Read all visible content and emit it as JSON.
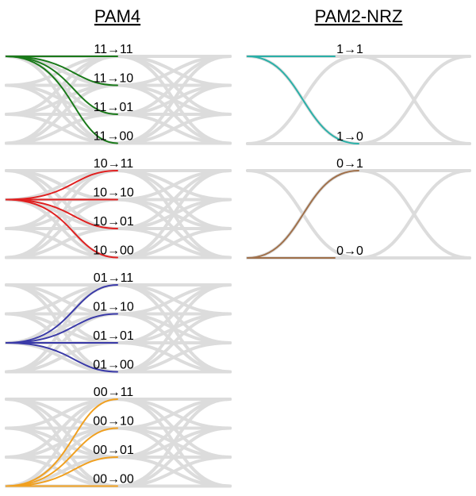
{
  "headings": {
    "pam4": "PAM4",
    "nrz": "PAM2-NRZ"
  },
  "colors": {
    "eye_gray": "#dcdcdc",
    "from_11": "#1a7a1a",
    "from_10": "#e02020",
    "from_01": "#3a3aa8",
    "from_00": "#f0a020",
    "nrz_1": "#2ab0a8",
    "nrz_0": "#a0704a"
  },
  "pam4": {
    "levels": [
      "11",
      "10",
      "01",
      "00"
    ],
    "groups": [
      {
        "from": "11",
        "color_key": "from_11",
        "labels": [
          "11→11",
          "11→10",
          "11→01",
          "11→00"
        ]
      },
      {
        "from": "10",
        "color_key": "from_10",
        "labels": [
          "10→11",
          "10→10",
          "10→01",
          "10→00"
        ]
      },
      {
        "from": "01",
        "color_key": "from_01",
        "labels": [
          "01→11",
          "01→10",
          "01→01",
          "01→00"
        ]
      },
      {
        "from": "00",
        "color_key": "from_00",
        "labels": [
          "00→11",
          "00→10",
          "00→01",
          "00→00"
        ]
      }
    ]
  },
  "nrz": {
    "groups": [
      {
        "from": "1",
        "color_key": "nrz_1",
        "to": "0",
        "labels": {
          "top": "1→1",
          "bottom": "1→0"
        }
      },
      {
        "from": "0",
        "color_key": "nrz_0",
        "to": "1",
        "labels": {
          "top": "0→1",
          "bottom": "0→0"
        }
      }
    ]
  }
}
